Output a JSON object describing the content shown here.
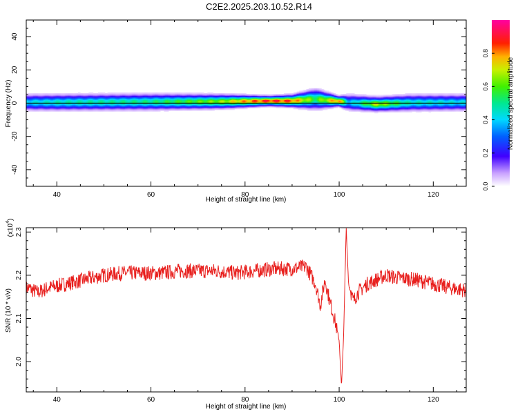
{
  "title": "C2E2.2025.203.10.52.R14",
  "chart_data": [
    {
      "type": "heatmap",
      "name": "spectrogram",
      "xlabel": "Height of straight line (km)",
      "ylabel": "Frequency (Hz)",
      "xlim": [
        33.5,
        127
      ],
      "ylim": [
        -50,
        50
      ],
      "xticks": [
        40,
        60,
        80,
        100,
        120
      ],
      "yticks": [
        -40,
        -20,
        0,
        20,
        40
      ],
      "description_series": [
        {
          "x": 34,
          "center_hz": 0.5,
          "halfwidth_hz": 4,
          "peak": 0.45
        },
        {
          "x": 40,
          "center_hz": 0.5,
          "halfwidth_hz": 4,
          "peak": 0.5
        },
        {
          "x": 60,
          "center_hz": 0.8,
          "halfwidth_hz": 4,
          "peak": 0.55
        },
        {
          "x": 75,
          "center_hz": 1.0,
          "halfwidth_hz": 3.5,
          "peak": 0.7
        },
        {
          "x": 80,
          "center_hz": 1.2,
          "halfwidth_hz": 3,
          "peak": 0.85
        },
        {
          "x": 85,
          "center_hz": 1.4,
          "halfwidth_hz": 2.5,
          "peak": 0.95
        },
        {
          "x": 90,
          "center_hz": 1.4,
          "halfwidth_hz": 3,
          "peak": 0.9
        },
        {
          "x": 95,
          "center_hz": 2.5,
          "halfwidth_hz": 5,
          "peak": 0.6
        },
        {
          "x": 100,
          "center_hz": 1.2,
          "halfwidth_hz": 2.5,
          "peak": 0.9
        },
        {
          "x": 102,
          "center_hz": 0.5,
          "halfwidth_hz": 4,
          "peak": 0.4
        },
        {
          "x": 108,
          "center_hz": -0.5,
          "halfwidth_hz": 3.5,
          "peak": 0.75
        },
        {
          "x": 115,
          "center_hz": 0.3,
          "halfwidth_hz": 4,
          "peak": 0.5
        },
        {
          "x": 127,
          "center_hz": 0.5,
          "halfwidth_hz": 4,
          "peak": 0.45
        }
      ],
      "colorbar": {
        "label": "Normalized spectral amplitude",
        "range": [
          0,
          1
        ],
        "ticks": [
          0.0,
          0.2,
          0.4,
          0.6,
          0.8
        ]
      }
    },
    {
      "type": "line",
      "name": "snr",
      "xlabel": "Height of straight line (km)",
      "ylabel": "SNR (10 * v/v)",
      "yscale_label": "(x10",
      "yscale_exp": "4",
      "xlim": [
        33.5,
        127
      ],
      "ylim": [
        1.93,
        2.31
      ],
      "xticks": [
        40,
        60,
        80,
        100,
        120
      ],
      "yticks": [
        2.0,
        2.1,
        2.2,
        2.3
      ],
      "color": "#e8201e",
      "series": [
        {
          "x": [
            34,
            36,
            38,
            40,
            42,
            44,
            46,
            48,
            50,
            54,
            58,
            62,
            66,
            70,
            74,
            78,
            82,
            86,
            90,
            93,
            95,
            96,
            97,
            98,
            99,
            100,
            100.5,
            101,
            101.5,
            102,
            103,
            104,
            106,
            108,
            110,
            112,
            116,
            120,
            124,
            127
          ],
          "y": [
            2.17,
            2.16,
            2.17,
            2.175,
            2.18,
            2.185,
            2.19,
            2.195,
            2.2,
            2.205,
            2.205,
            2.205,
            2.21,
            2.21,
            2.21,
            2.205,
            2.21,
            2.215,
            2.215,
            2.22,
            2.18,
            2.13,
            2.19,
            2.14,
            2.1,
            2.05,
            1.94,
            2.08,
            2.31,
            2.18,
            2.14,
            2.16,
            2.18,
            2.19,
            2.2,
            2.195,
            2.19,
            2.18,
            2.17,
            2.165
          ]
        }
      ]
    }
  ]
}
